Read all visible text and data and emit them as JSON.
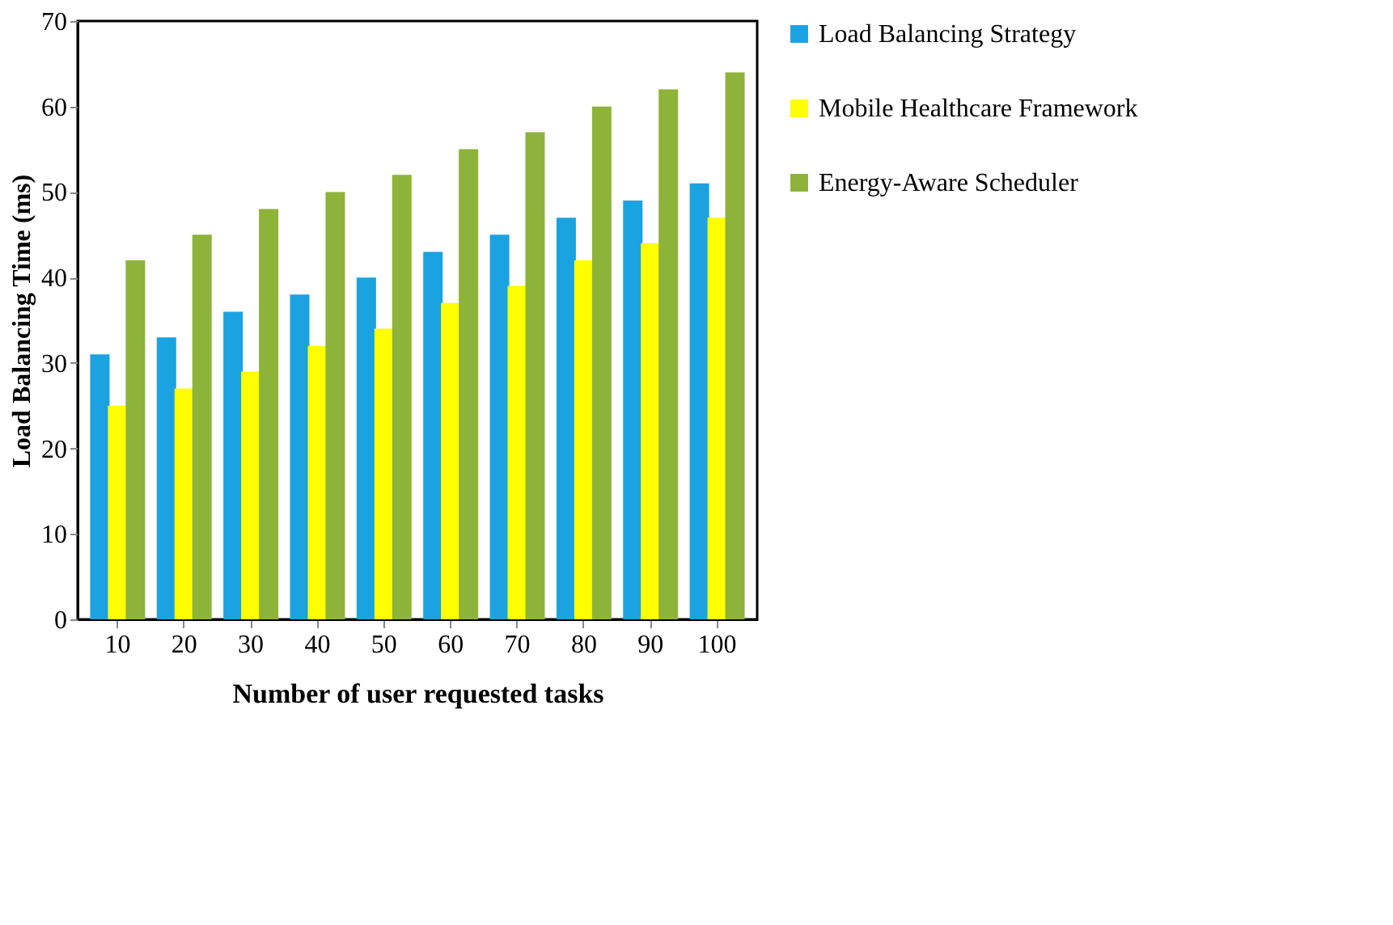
{
  "chart_data": {
    "type": "bar",
    "xlabel": "Number of user requested tasks",
    "ylabel": "Load Balancing Time (ms)",
    "categories": [
      "10",
      "20",
      "30",
      "40",
      "50",
      "60",
      "70",
      "80",
      "90",
      "100"
    ],
    "series": [
      {
        "name": "Load Balancing  Strategy",
        "color": "#1aa3e0",
        "values": [
          31,
          33,
          36,
          38,
          40,
          43,
          45,
          47,
          49,
          51
        ]
      },
      {
        "name": "Mobile Healthcare Framework",
        "color": "#ffff00",
        "values": [
          25,
          27,
          29,
          32,
          34,
          37,
          39,
          42,
          44,
          47
        ]
      },
      {
        "name": "Energy-Aware Scheduler",
        "color": "#8db33a",
        "values": [
          42,
          45,
          48,
          50,
          52,
          55,
          57,
          60,
          62,
          64
        ]
      }
    ],
    "ylim": [
      0,
      70
    ],
    "yticks": [
      0,
      10,
      20,
      30,
      40,
      50,
      60,
      70
    ],
    "grid": false,
    "legend": "right"
  }
}
